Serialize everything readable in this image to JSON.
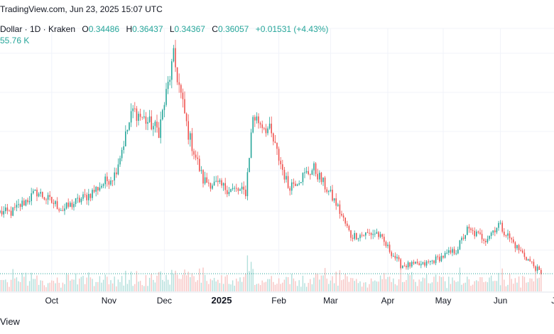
{
  "header": {
    "source_line": "TradingView.com, Jun 23, 2025 15:07 UTC",
    "symbol": "Dollar · 1D · Kraken",
    "open_label": "O",
    "open": "0.34486",
    "high_label": "H",
    "high": "0.36437",
    "low_label": "L",
    "low": "0.34367",
    "close_label": "C",
    "close": "0.36057",
    "change": "+0.01531 (+4.43%)",
    "volume": "55.76 K"
  },
  "bottom_note": "View",
  "colors": {
    "up": "#26a69a",
    "down": "#ef5350",
    "grid": "#f0f3fa",
    "last_line": "#26a69a"
  },
  "chart_data": {
    "type": "candlestick",
    "x_ticks": [
      "Oct",
      "Nov",
      "Dec",
      "2025",
      "Feb",
      "Mar",
      "Apr",
      "May",
      "Jun",
      "Ju"
    ],
    "bold_ticks": [
      "2025"
    ],
    "price_range": [
      0.3,
      1.2
    ],
    "key_points": [
      {
        "date": "2024-09-09",
        "close": 0.57
      },
      {
        "date": "2024-09-23",
        "close": 0.64
      },
      {
        "date": "2024-10-07",
        "close": 0.58
      },
      {
        "date": "2024-10-21",
        "close": 0.63
      },
      {
        "date": "2024-11-04",
        "close": 0.7
      },
      {
        "date": "2024-11-14",
        "close": 0.92
      },
      {
        "date": "2024-11-28",
        "close": 0.85
      },
      {
        "date": "2024-12-06",
        "close": 1.1
      },
      {
        "date": "2024-12-14",
        "close": 0.84
      },
      {
        "date": "2024-12-22",
        "close": 0.68
      },
      {
        "date": "2025-01-05",
        "close": 0.65
      },
      {
        "date": "2025-01-14",
        "close": 0.64
      },
      {
        "date": "2025-01-18",
        "close": 0.9
      },
      {
        "date": "2025-01-27",
        "close": 0.85
      },
      {
        "date": "2025-02-06",
        "close": 0.66
      },
      {
        "date": "2025-02-20",
        "close": 0.72
      },
      {
        "date": "2025-03-04",
        "close": 0.6
      },
      {
        "date": "2025-03-12",
        "close": 0.49
      },
      {
        "date": "2025-03-26",
        "close": 0.5
      },
      {
        "date": "2025-04-08",
        "close": 0.39
      },
      {
        "date": "2025-04-20",
        "close": 0.39
      },
      {
        "date": "2025-05-08",
        "close": 0.44
      },
      {
        "date": "2025-05-14",
        "close": 0.51
      },
      {
        "date": "2025-05-24",
        "close": 0.48
      },
      {
        "date": "2025-05-31",
        "close": 0.53
      },
      {
        "date": "2025-06-10",
        "close": 0.45
      },
      {
        "date": "2025-06-23",
        "close": 0.36
      }
    ],
    "last_close": 0.36057
  }
}
